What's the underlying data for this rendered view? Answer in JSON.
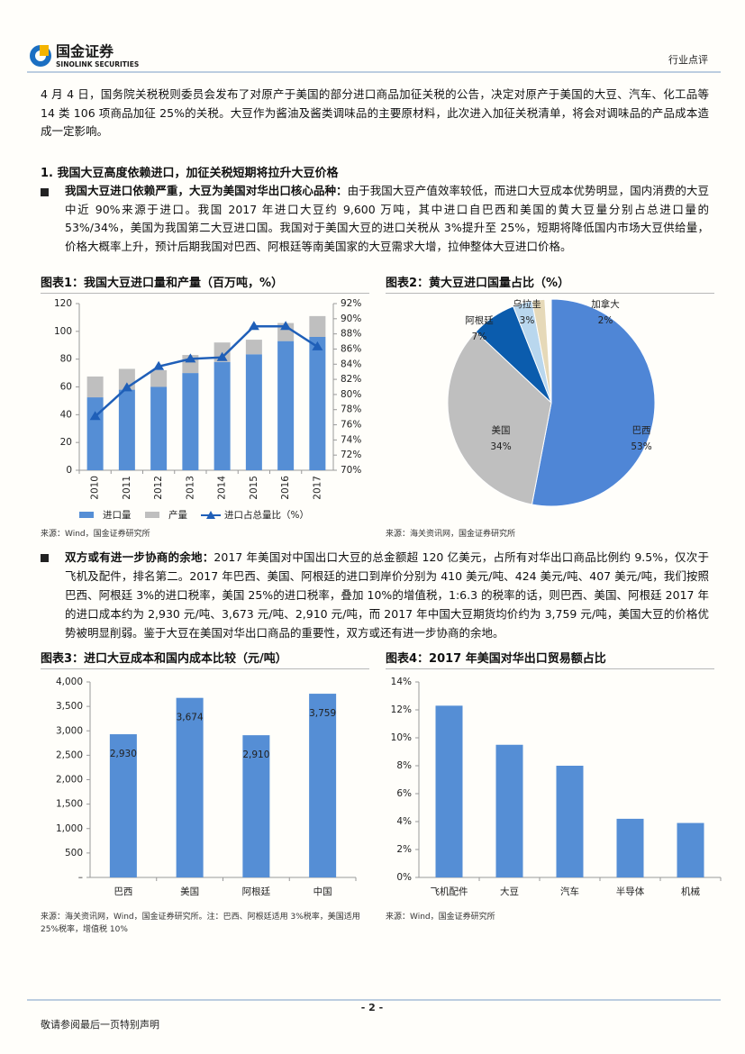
{
  "header": {
    "logo_cn": "国金证券",
    "logo_en": "SINOLINK SECURITIES",
    "tag": "行业点评"
  },
  "intro": "4 月 4 日，国务院关税税则委员会发布了对原产于美国的部分进口商品加征关税的公告，决定对原产于美国的大豆、汽车、化工品等 14 类 106 项商品加征 25%的关税。大豆作为酱油及酱类调味品的主要原材料，此次进入加征关税清单，将会对调味品的产品成本造成一定影响。",
  "section_heading": "1.  我国大豆高度依赖进口，加征关税短期将拉升大豆价格",
  "bullets": [
    {
      "lead": "我国大豆进口依赖严重，大豆为美国对华出口核心品种：",
      "text": "由于我国大豆产值效率较低，而进口大豆成本优势明显，国内消费的大豆中近 90%来源于进口。我国 2017 年进口大豆约 9,600 万吨，其中进口自巴西和美国的黄大豆量分别占总进口量的 53%/34%，美国为我国第二大豆进口国。我国对于美国大豆的进口关税从 3%提升至 25%，短期将降低国内市场大豆供给量，价格大概率上升，预计后期我国对巴西、阿根廷等南美国家的大豆需求大增，拉伸整体大豆进口价格。"
    },
    {
      "lead": "双方或有进一步协商的余地：",
      "text": "2017 年美国对中国出口大豆的总金额超 120 亿美元，占所有对华出口商品比例约 9.5%，仅次于飞机及配件，排名第二。2017 年巴西、美国、阿根廷的进口到岸价分别为 410 美元/吨、424 美元/吨、407 美元/吨，我们按照巴西、阿根廷 3%的进口税率，美国 25%的进口税率，叠加 10%的增值税，1:6.3 的税率的话，则巴西、美国、阿根廷 2017 年的进口成本约为 2,930 元/吨、3,673 元/吨、2,910 元/吨，而 2017 年中国大豆期货均价约为 3,759 元/吨，美国大豆的价格优势被明显削弱。鉴于大豆在美国对华出口商品的重要性，双方或还有进一步协商的余地。"
    }
  ],
  "chart_data": [
    {
      "type": "combo",
      "title": "图表1：我国大豆进口量和产量（百万吨，%）",
      "categories": [
        "2010",
        "2011",
        "2012",
        "2013",
        "2014",
        "2015",
        "2016",
        "2017"
      ],
      "stacked": true,
      "series": [
        {
          "name": "进口量",
          "color": "#558ed5",
          "kind": "bar",
          "values": [
            52.5,
            58,
            60,
            70,
            78,
            83.5,
            93,
            96
          ]
        },
        {
          "name": "产量",
          "color": "#bfbfbf",
          "kind": "bar",
          "values": [
            15,
            15,
            12,
            13,
            14,
            10.5,
            13,
            15
          ]
        },
        {
          "name": "进口占总量比（%）",
          "color": "#1f5fb8",
          "kind": "line",
          "axis": "y2",
          "values": [
            77.1,
            80.9,
            83.7,
            84.7,
            84.9,
            89,
            89,
            86.3
          ]
        }
      ],
      "ylim": [
        0,
        120
      ],
      "yticks": [
        0,
        20,
        40,
        60,
        80,
        100,
        120
      ],
      "y2lim": [
        70,
        92
      ],
      "y2ticks": [
        {
          "value": 70,
          "label": "70%"
        },
        {
          "value": 72,
          "label": "72%"
        },
        {
          "value": 74,
          "label": "74%"
        },
        {
          "value": 76,
          "label": "76%"
        },
        {
          "value": 78,
          "label": "78%"
        },
        {
          "value": 80,
          "label": "80%"
        },
        {
          "value": 82,
          "label": "82%"
        },
        {
          "value": 84,
          "label": "84%"
        },
        {
          "value": 86,
          "label": "86%"
        },
        {
          "value": 88,
          "label": "88%"
        },
        {
          "value": 90,
          "label": "90%"
        },
        {
          "value": 92,
          "label": "92%"
        }
      ],
      "source": "来源：Wind，国金证券研究所"
    },
    {
      "type": "pie",
      "title": "图表2：黄大豆进口国量占比（%）",
      "categories": [
        "巴西",
        "美国",
        "阿根廷",
        "乌拉圭",
        "加拿大"
      ],
      "values": [
        53,
        34,
        7,
        3,
        2
      ],
      "value_labels": [
        "53%",
        "34%",
        "7%",
        "3%",
        "2%"
      ],
      "colors": [
        "#4f86d6",
        "#bfbfbf",
        "#0b5cad",
        "#b9d7ee",
        "#e6d9b8"
      ],
      "source": "来源：海关资讯网，国金证券研究所"
    },
    {
      "type": "bar",
      "title": "图表3：进口大豆成本和国内成本比较（元/吨）",
      "categories": [
        "巴西",
        "美国",
        "阿根廷",
        "中国"
      ],
      "values": [
        2930,
        3674,
        2910,
        3759
      ],
      "value_labels": [
        "2,930",
        "3,674",
        "2,910",
        "3,759"
      ],
      "color": "#558ed5",
      "ylim": [
        0,
        4000
      ],
      "yticks": [
        {
          "value": 0,
          "label": "–"
        },
        500,
        {
          "value": 1000,
          "label": "1,000"
        },
        {
          "value": 1500,
          "label": "1,500"
        },
        {
          "value": 2000,
          "label": "2,000"
        },
        {
          "value": 2500,
          "label": "2,500"
        },
        {
          "value": 3000,
          "label": "3,000"
        },
        {
          "value": 3500,
          "label": "3,500"
        },
        {
          "value": 4000,
          "label": "4,000"
        }
      ],
      "source": "来源：海关资讯网，Wind，国金证券研究所。注：巴西、阿根廷适用 3%税率，美国适用 25%税率，增值税 10%"
    },
    {
      "type": "bar",
      "title": "图表4：2017 年美国对华出口贸易额占比",
      "categories": [
        "飞机配件",
        "大豆",
        "汽车",
        "半导体",
        "机械"
      ],
      "values": [
        12.3,
        9.5,
        8,
        4.2,
        3.9
      ],
      "color": "#558ed5",
      "ylim": [
        0,
        14
      ],
      "yticks": [
        {
          "value": 0,
          "label": "0%"
        },
        {
          "value": 2,
          "label": "2%"
        },
        {
          "value": 4,
          "label": "4%"
        },
        {
          "value": 6,
          "label": "6%"
        },
        {
          "value": 8,
          "label": "8%"
        },
        {
          "value": 10,
          "label": "10%"
        },
        {
          "value": 12,
          "label": "12%"
        },
        {
          "value": 14,
          "label": "14%"
        }
      ],
      "source": "来源：Wind，国金证券研究所"
    }
  ],
  "footer": {
    "page": "- 2 -",
    "note": "敬请参阅最后一页特别声明"
  }
}
